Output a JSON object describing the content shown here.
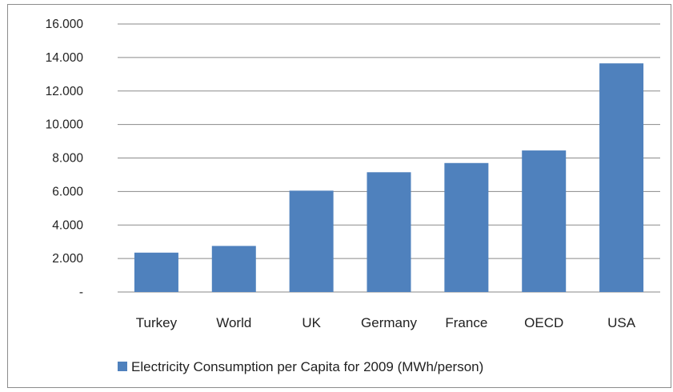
{
  "chart_data": {
    "type": "bar",
    "title": "",
    "xlabel": "",
    "ylabel": "",
    "categories": [
      "Turkey",
      "World",
      "UK",
      "Germany",
      "France",
      "OECD",
      "USA"
    ],
    "series": [
      {
        "name": "Electricity Consumption per Capita for 2009 (MWh/person)",
        "values": [
          2.35,
          2.75,
          6.05,
          7.15,
          7.7,
          8.45,
          13.65
        ],
        "color": "#4f81bd"
      }
    ],
    "ylim": [
      0,
      16
    ],
    "yticks": [
      0,
      2,
      4,
      6,
      8,
      10,
      12,
      14,
      16
    ],
    "ytick_labels": [
      "-",
      "2.000",
      "4.000",
      "6.000",
      "8.000",
      "10.000",
      "12.000",
      "14.000",
      "16.000"
    ],
    "grid": true,
    "legend_position": "bottom"
  }
}
